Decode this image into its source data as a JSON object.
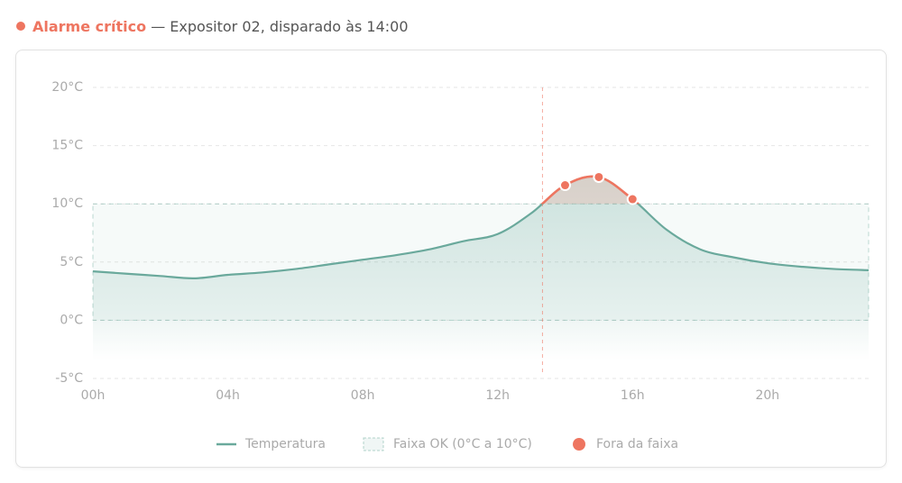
{
  "header": {
    "alarm": "Alarme crítico",
    "detail": "— Expositor 02, disparado às 14:00"
  },
  "chart_data": {
    "type": "line",
    "x": [
      0,
      1,
      2,
      3,
      4,
      5,
      6,
      7,
      8,
      9,
      10,
      11,
      12,
      13,
      14,
      15,
      16,
      17,
      18,
      19,
      20,
      21,
      22,
      23
    ],
    "series": [
      {
        "name": "Temperatura",
        "color": "#6aa99c",
        "values": [
          4.2,
          4.0,
          3.8,
          3.6,
          3.9,
          4.1,
          4.4,
          4.8,
          5.2,
          5.6,
          6.1,
          6.8,
          7.4,
          9.2,
          11.6,
          12.3,
          10.4,
          7.8,
          6.1,
          5.4,
          4.9,
          4.6,
          4.4,
          4.3
        ]
      },
      {
        "name": "Fora da faixa",
        "color": "#ee7560",
        "x": [
          14,
          15,
          16
        ],
        "values": [
          11.6,
          12.3,
          10.4
        ]
      }
    ],
    "ok_range": [
      0,
      10
    ],
    "ok_label": "Faixa OK (0°C a 10°C)",
    "ok_color": "#6aa99c",
    "alarm_x": 13.33,
    "xlim": [
      0,
      23
    ],
    "ylim": [
      -5,
      20
    ],
    "xticks": [
      {
        "value": 0,
        "label": "00h"
      },
      {
        "value": 4,
        "label": "04h"
      },
      {
        "value": 8,
        "label": "08h"
      },
      {
        "value": 12,
        "label": "12h"
      },
      {
        "value": 16,
        "label": "16h"
      },
      {
        "value": 20,
        "label": "20h"
      }
    ],
    "yticks": [
      {
        "value": -5,
        "label": "-5°C"
      },
      {
        "value": 0,
        "label": "0°C"
      },
      {
        "value": 5,
        "label": "5°C"
      },
      {
        "value": 10,
        "label": "10°C"
      },
      {
        "value": 15,
        "label": "15°C"
      },
      {
        "value": 20,
        "label": "20°C"
      }
    ],
    "grid": true
  }
}
